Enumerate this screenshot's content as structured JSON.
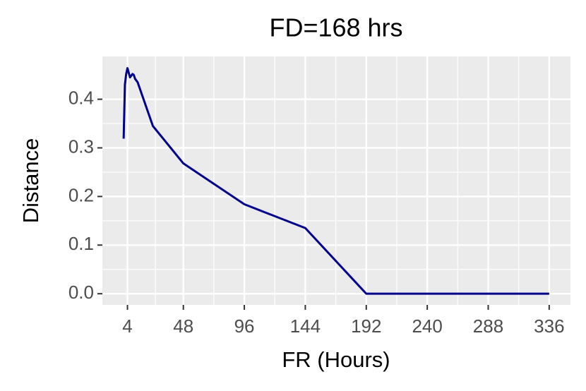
{
  "chart_data": {
    "type": "line",
    "title": "FD=168 hrs",
    "x_label": "FR (Hours)",
    "y_label": "Distance",
    "x": [
      1,
      2,
      3,
      4,
      6,
      8,
      9,
      10,
      12,
      24,
      48,
      96,
      144,
      192,
      240,
      288,
      336
    ],
    "series": [
      {
        "name": "Distance",
        "color": "#00008b",
        "values": [
          0.319,
          0.43,
          0.452,
          0.464,
          0.445,
          0.452,
          0.45,
          0.442,
          0.435,
          0.345,
          0.268,
          0.184,
          0.135,
          0,
          0,
          0,
          0
        ]
      }
    ],
    "xlim": [
      -15.75,
      352.75
    ],
    "xticks": [
      4,
      48,
      96,
      144,
      192,
      240,
      288,
      336
    ],
    "ylim": [
      -0.023,
      0.488
    ],
    "yticks": [
      {
        "value": 0,
        "label": "0.0"
      },
      0.1,
      0.2,
      0.3,
      0.4
    ],
    "grid": true
  }
}
